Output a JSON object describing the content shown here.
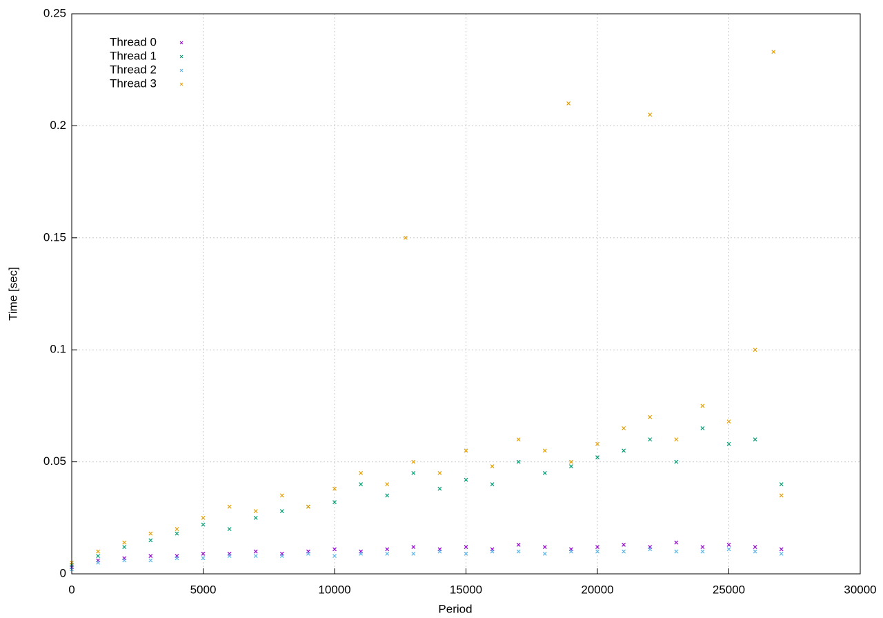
{
  "chart_data": {
    "type": "scatter",
    "x_label": "Period",
    "y_label": "Time [sec]",
    "xlim": [
      0,
      30000
    ],
    "xticks": [
      0,
      5000,
      10000,
      15000,
      20000,
      25000,
      30000
    ],
    "ylim": [
      0,
      0.25
    ],
    "yticks": [
      0,
      0.05,
      0.1,
      0.15,
      0.2,
      0.25
    ],
    "grid": true,
    "legend": "top-left",
    "series": [
      {
        "name": "Thread 0",
        "color": "#9400d3",
        "x": [
          0,
          1000,
          2000,
          3000,
          4000,
          5000,
          6000,
          7000,
          8000,
          9000,
          10000,
          11000,
          12000,
          13000,
          14000,
          15000,
          16000,
          17000,
          18000,
          19000,
          20000,
          21000,
          22000,
          23000,
          24000,
          25000,
          26000,
          27000
        ],
        "values": [
          0.003,
          0.006,
          0.007,
          0.008,
          0.008,
          0.009,
          0.009,
          0.01,
          0.009,
          0.01,
          0.011,
          0.01,
          0.011,
          0.012,
          0.011,
          0.012,
          0.011,
          0.013,
          0.012,
          0.011,
          0.012,
          0.013,
          0.012,
          0.014,
          0.012,
          0.013,
          0.012,
          0.011
        ]
      },
      {
        "name": "Thread 1",
        "color": "#009e73",
        "x": [
          0,
          1000,
          2000,
          3000,
          4000,
          5000,
          6000,
          7000,
          8000,
          9000,
          10000,
          11000,
          12000,
          13000,
          14000,
          15000,
          16000,
          17000,
          18000,
          19000,
          20000,
          21000,
          22000,
          23000,
          24000,
          25000,
          26000,
          27000
        ],
        "values": [
          0.004,
          0.008,
          0.012,
          0.015,
          0.018,
          0.022,
          0.02,
          0.025,
          0.028,
          0.03,
          0.032,
          0.04,
          0.035,
          0.045,
          0.038,
          0.042,
          0.04,
          0.05,
          0.045,
          0.048,
          0.052,
          0.055,
          0.06,
          0.05,
          0.065,
          0.058,
          0.06,
          0.04
        ]
      },
      {
        "name": "Thread 2",
        "color": "#56b4e9",
        "x": [
          0,
          1000,
          2000,
          3000,
          4000,
          5000,
          6000,
          7000,
          8000,
          9000,
          10000,
          11000,
          12000,
          13000,
          14000,
          15000,
          16000,
          17000,
          18000,
          19000,
          20000,
          21000,
          22000,
          23000,
          24000,
          25000,
          26000,
          27000
        ],
        "values": [
          0.002,
          0.005,
          0.006,
          0.006,
          0.007,
          0.007,
          0.008,
          0.008,
          0.008,
          0.009,
          0.008,
          0.009,
          0.009,
          0.009,
          0.01,
          0.009,
          0.01,
          0.01,
          0.009,
          0.01,
          0.01,
          0.01,
          0.011,
          0.01,
          0.01,
          0.011,
          0.01,
          0.009
        ]
      },
      {
        "name": "Thread 3",
        "color": "#e69f00",
        "x": [
          0,
          1000,
          2000,
          3000,
          4000,
          5000,
          6000,
          7000,
          8000,
          9000,
          10000,
          11000,
          12000,
          13000,
          14000,
          15000,
          16000,
          17000,
          18000,
          19000,
          20000,
          21000,
          22000,
          23000,
          24000,
          25000,
          26000,
          27000,
          12700,
          18900,
          22000,
          26700
        ],
        "values": [
          0.005,
          0.01,
          0.014,
          0.018,
          0.02,
          0.025,
          0.03,
          0.028,
          0.035,
          0.03,
          0.038,
          0.045,
          0.04,
          0.05,
          0.045,
          0.055,
          0.048,
          0.06,
          0.055,
          0.05,
          0.058,
          0.065,
          0.07,
          0.06,
          0.075,
          0.068,
          0.1,
          0.035,
          0.15,
          0.21,
          0.205,
          0.233
        ]
      }
    ]
  }
}
